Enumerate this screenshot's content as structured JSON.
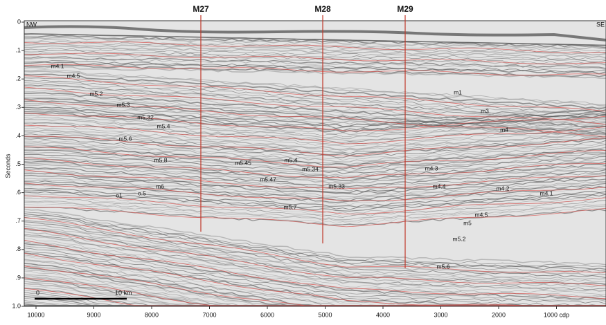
{
  "axes": {
    "y_label": "Seconds",
    "y_ticks": [
      "0",
      ".1",
      ".2",
      ".3",
      ".4",
      ".5",
      ".6",
      ".7",
      ".8",
      ".9",
      "1.0"
    ],
    "x_ticks": [
      "10000",
      "9000",
      "8000",
      "7000",
      "6000",
      "5000",
      "4000",
      "3000",
      "2000",
      "1000 cdp"
    ]
  },
  "orientation": {
    "left": "NW",
    "right": "SE"
  },
  "wells": [
    {
      "label": "M27"
    },
    {
      "label": "M28"
    },
    {
      "label": "M29"
    }
  ],
  "horizon_labels": [
    "m4.1",
    "m4.5",
    "m5.2",
    "m5.3",
    "m5.32",
    "m5.4",
    "m5.6",
    "m5.8",
    "m6",
    "o.5",
    "o1",
    "m5.45",
    "m5.47",
    "m5.4",
    "m5.34",
    "m5.33",
    "m5.7",
    "m1",
    "m3",
    "m4",
    "m4.3",
    "m4.4",
    "m4.2",
    "m4.1",
    "m4.5",
    "m5",
    "m5.2",
    "m5.6"
  ],
  "scale_bar": {
    "start": "0",
    "end": "10 km"
  }
}
